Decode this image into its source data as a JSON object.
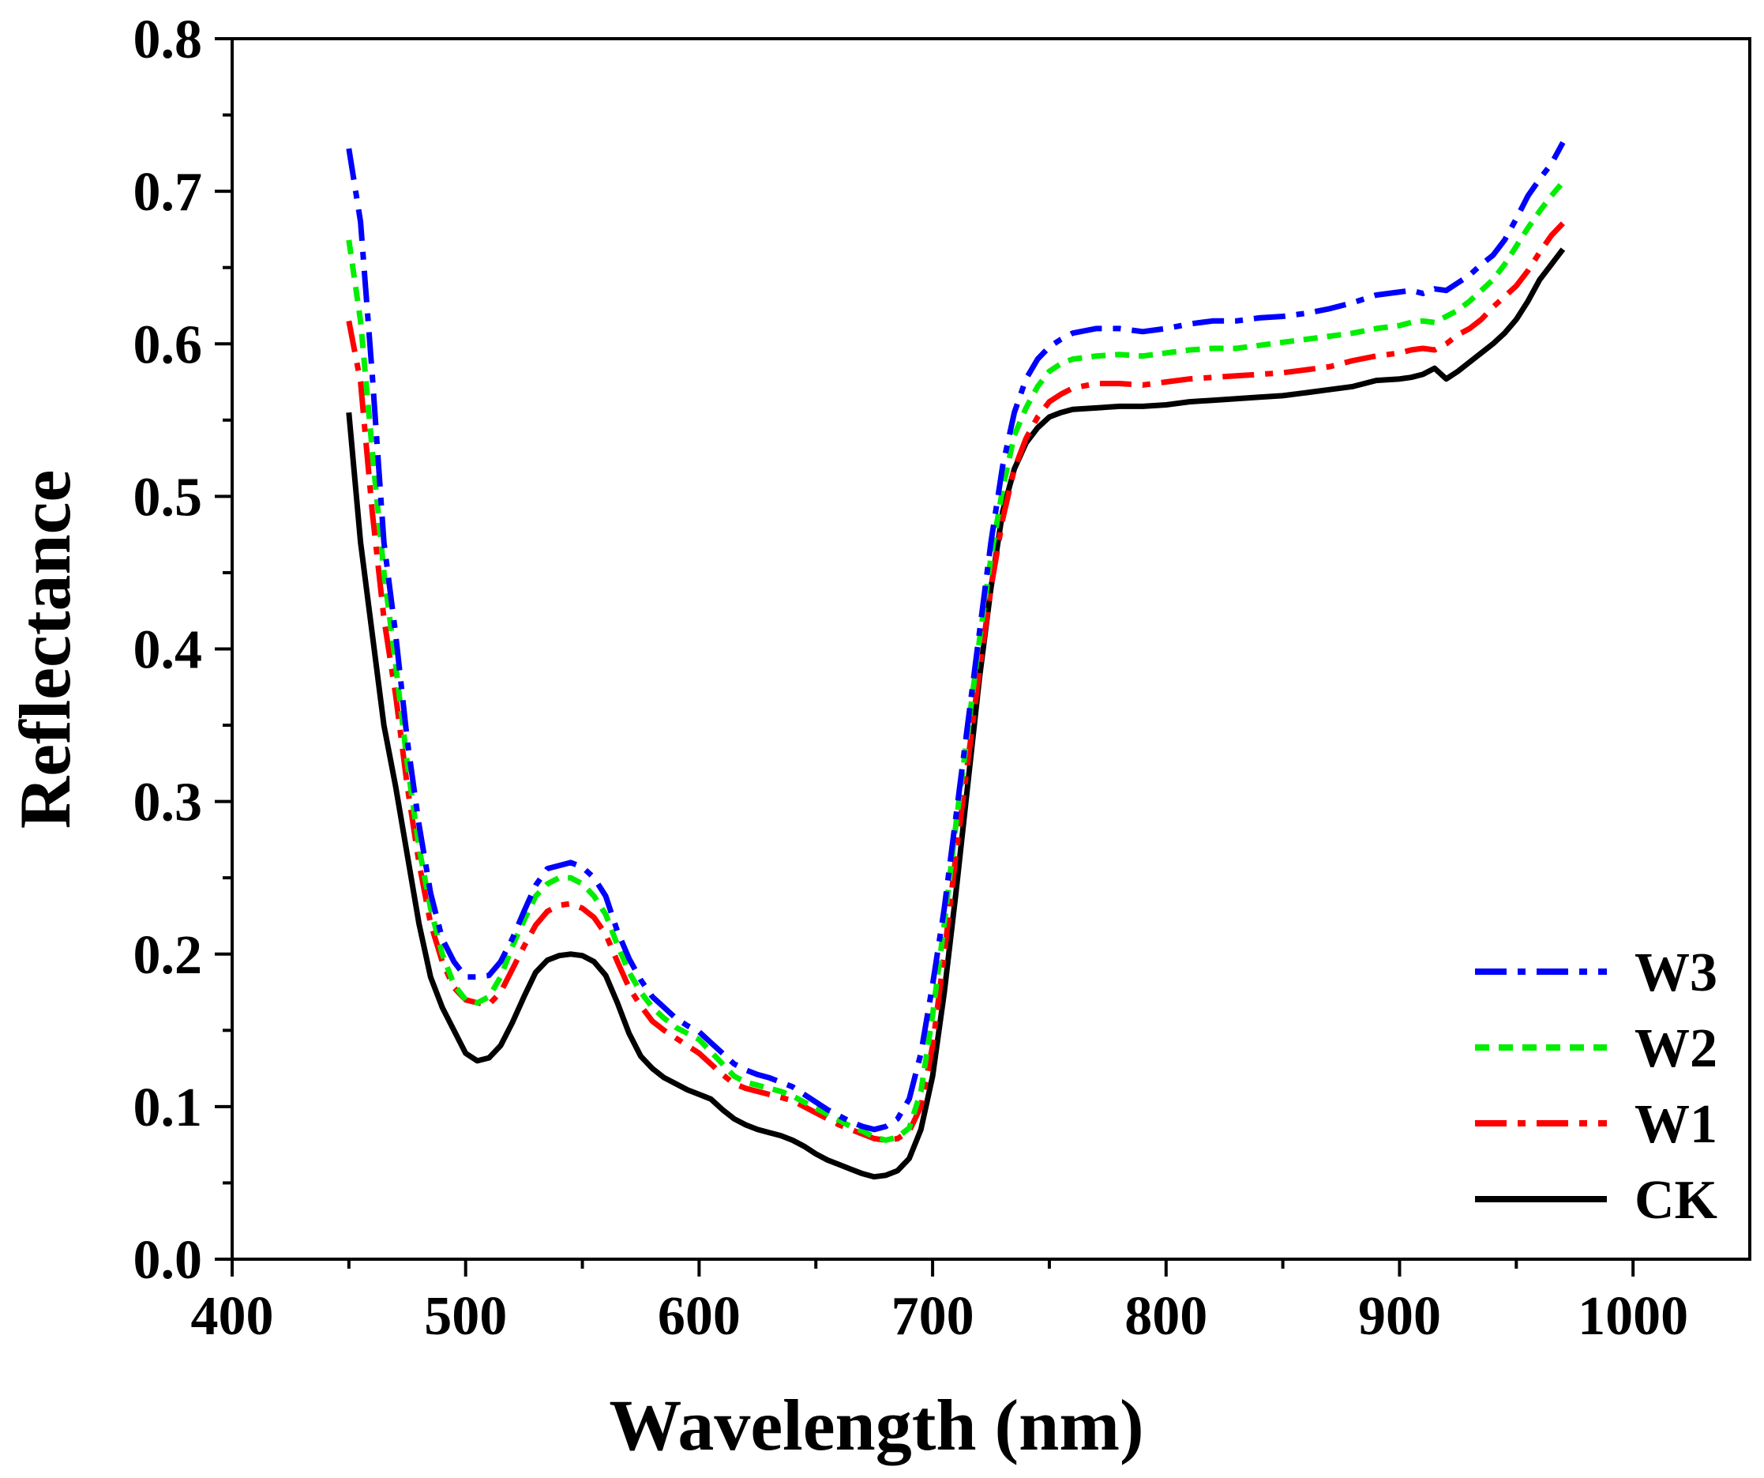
{
  "chart_data": {
    "type": "line",
    "title": "",
    "xlabel": "Wavelength (nm)",
    "ylabel": "Reflectance",
    "xlim": [
      400,
      1050
    ],
    "ylim": [
      0.0,
      0.8
    ],
    "xticks": [
      400,
      500,
      600,
      700,
      800,
      900,
      1000
    ],
    "xtick_labels": [
      "400",
      "500",
      "600",
      "700",
      "800",
      "900",
      "1000"
    ],
    "yticks": [
      0.0,
      0.1,
      0.2,
      0.3,
      0.4,
      0.5,
      0.6,
      0.7,
      0.8
    ],
    "ytick_labels": [
      "0.0",
      "0.1",
      "0.2",
      "0.3",
      "0.4",
      "0.5",
      "0.6",
      "0.7",
      "0.8"
    ],
    "grid": false,
    "legend_position": "bottom-right",
    "x": [
      450,
      455,
      460,
      465,
      470,
      475,
      480,
      485,
      490,
      495,
      500,
      505,
      510,
      515,
      520,
      525,
      530,
      535,
      540,
      545,
      550,
      555,
      560,
      565,
      570,
      575,
      580,
      585,
      590,
      595,
      600,
      605,
      610,
      615,
      620,
      625,
      630,
      635,
      640,
      645,
      650,
      655,
      660,
      665,
      670,
      675,
      680,
      685,
      690,
      695,
      700,
      705,
      710,
      715,
      720,
      725,
      730,
      735,
      740,
      745,
      750,
      755,
      760,
      770,
      780,
      790,
      800,
      810,
      820,
      830,
      840,
      850,
      860,
      870,
      880,
      890,
      900,
      905,
      910,
      915,
      920,
      925,
      930,
      935,
      940,
      945,
      950,
      955,
      960,
      965,
      970
    ],
    "series": [
      {
        "name": "W3",
        "color": "#0000ff",
        "dash": "dashdot",
        "values": [
          0.728,
          0.68,
          0.58,
          0.47,
          0.41,
          0.34,
          0.285,
          0.24,
          0.21,
          0.195,
          0.185,
          0.185,
          0.186,
          0.195,
          0.21,
          0.228,
          0.245,
          0.256,
          0.258,
          0.26,
          0.257,
          0.25,
          0.238,
          0.215,
          0.197,
          0.183,
          0.172,
          0.165,
          0.158,
          0.153,
          0.149,
          0.142,
          0.135,
          0.128,
          0.124,
          0.121,
          0.119,
          0.116,
          0.113,
          0.108,
          0.103,
          0.098,
          0.094,
          0.09,
          0.087,
          0.085,
          0.087,
          0.092,
          0.105,
          0.135,
          0.18,
          0.23,
          0.29,
          0.35,
          0.41,
          0.47,
          0.52,
          0.555,
          0.577,
          0.59,
          0.598,
          0.603,
          0.607,
          0.61,
          0.61,
          0.608,
          0.61,
          0.613,
          0.615,
          0.615,
          0.617,
          0.618,
          0.62,
          0.623,
          0.627,
          0.632,
          0.634,
          0.635,
          0.633,
          0.636,
          0.635,
          0.64,
          0.645,
          0.652,
          0.658,
          0.668,
          0.682,
          0.697,
          0.708,
          0.718,
          0.732
        ]
      },
      {
        "name": "W2",
        "color": "#00ee00",
        "dash": "dash",
        "values": [
          0.668,
          0.615,
          0.53,
          0.45,
          0.39,
          0.325,
          0.27,
          0.23,
          0.2,
          0.18,
          0.17,
          0.168,
          0.172,
          0.185,
          0.205,
          0.222,
          0.238,
          0.246,
          0.25,
          0.25,
          0.246,
          0.238,
          0.226,
          0.206,
          0.188,
          0.175,
          0.165,
          0.158,
          0.152,
          0.148,
          0.144,
          0.136,
          0.128,
          0.12,
          0.116,
          0.114,
          0.112,
          0.11,
          0.107,
          0.103,
          0.099,
          0.095,
          0.091,
          0.087,
          0.084,
          0.08,
          0.078,
          0.08,
          0.086,
          0.11,
          0.16,
          0.22,
          0.285,
          0.345,
          0.405,
          0.46,
          0.505,
          0.54,
          0.558,
          0.572,
          0.582,
          0.587,
          0.59,
          0.592,
          0.593,
          0.592,
          0.594,
          0.596,
          0.597,
          0.597,
          0.599,
          0.601,
          0.603,
          0.605,
          0.607,
          0.61,
          0.612,
          0.614,
          0.615,
          0.614,
          0.618,
          0.622,
          0.628,
          0.635,
          0.642,
          0.652,
          0.664,
          0.676,
          0.687,
          0.697,
          0.706
        ]
      },
      {
        "name": "W1",
        "color": "#ff0000",
        "dash": "dashdot",
        "values": [
          0.615,
          0.575,
          0.49,
          0.42,
          0.37,
          0.31,
          0.26,
          0.22,
          0.195,
          0.178,
          0.17,
          0.168,
          0.167,
          0.175,
          0.19,
          0.205,
          0.219,
          0.228,
          0.232,
          0.233,
          0.23,
          0.224,
          0.213,
          0.195,
          0.178,
          0.166,
          0.156,
          0.15,
          0.145,
          0.14,
          0.135,
          0.128,
          0.121,
          0.115,
          0.112,
          0.11,
          0.108,
          0.106,
          0.104,
          0.1,
          0.096,
          0.092,
          0.088,
          0.085,
          0.082,
          0.079,
          0.078,
          0.079,
          0.084,
          0.1,
          0.14,
          0.2,
          0.265,
          0.325,
          0.385,
          0.44,
          0.485,
          0.518,
          0.538,
          0.552,
          0.562,
          0.567,
          0.571,
          0.574,
          0.574,
          0.573,
          0.575,
          0.577,
          0.578,
          0.579,
          0.58,
          0.581,
          0.583,
          0.585,
          0.589,
          0.592,
          0.594,
          0.596,
          0.597,
          0.596,
          0.6,
          0.606,
          0.61,
          0.616,
          0.624,
          0.631,
          0.638,
          0.648,
          0.66,
          0.671,
          0.679
        ]
      },
      {
        "name": "CK",
        "color": "#000000",
        "dash": "solid",
        "values": [
          0.555,
          0.47,
          0.41,
          0.35,
          0.31,
          0.265,
          0.22,
          0.185,
          0.165,
          0.15,
          0.135,
          0.13,
          0.132,
          0.14,
          0.155,
          0.172,
          0.188,
          0.196,
          0.199,
          0.2,
          0.199,
          0.195,
          0.186,
          0.168,
          0.148,
          0.133,
          0.125,
          0.119,
          0.115,
          0.111,
          0.108,
          0.105,
          0.098,
          0.092,
          0.088,
          0.085,
          0.083,
          0.081,
          0.078,
          0.074,
          0.069,
          0.065,
          0.062,
          0.059,
          0.056,
          0.054,
          0.055,
          0.058,
          0.066,
          0.085,
          0.12,
          0.175,
          0.24,
          0.31,
          0.38,
          0.44,
          0.49,
          0.518,
          0.535,
          0.545,
          0.552,
          0.555,
          0.557,
          0.558,
          0.559,
          0.559,
          0.56,
          0.562,
          0.563,
          0.564,
          0.565,
          0.566,
          0.568,
          0.57,
          0.572,
          0.576,
          0.577,
          0.578,
          0.58,
          0.584,
          0.577,
          0.582,
          0.588,
          0.594,
          0.6,
          0.607,
          0.616,
          0.628,
          0.642,
          0.652,
          0.662
        ]
      }
    ],
    "legend_order": [
      "W3",
      "W2",
      "W1",
      "CK"
    ]
  }
}
